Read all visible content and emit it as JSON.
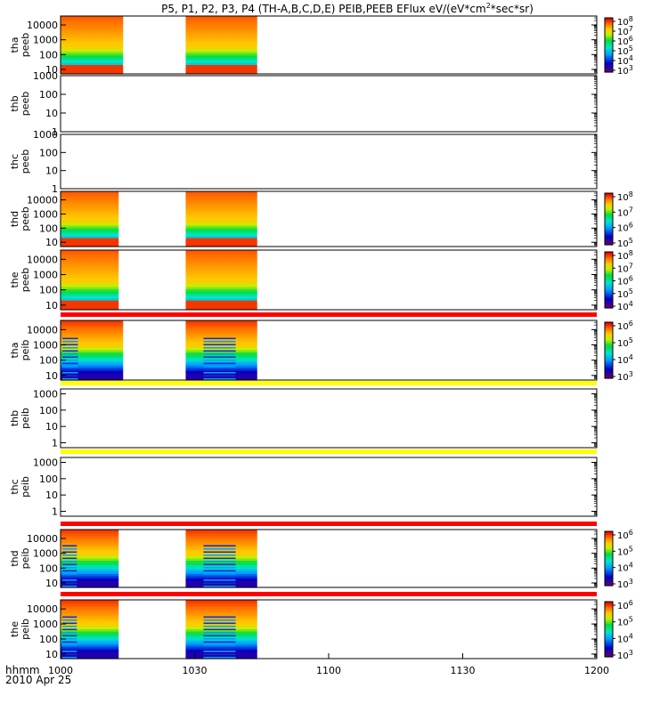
{
  "chart_data": {
    "type": "heatmap",
    "title": "P5, P1, P2, P3, P4 (TH-A,B,C,D,E) PEIB,PEEB EFlux eV/(eV*cm",
    "title_sup": "2",
    "title_suffix": "*sec*sr)",
    "x_axis": {
      "label": "hhmm",
      "date_label": "2010 Apr 25",
      "range": [
        "10:00",
        "12:00"
      ],
      "ticks": [
        "1000",
        "1030",
        "1100",
        "1130",
        "1200"
      ]
    },
    "y_scale": "log",
    "colormap": "rainbow",
    "panels": [
      {
        "probe": "tha",
        "product": "peeb",
        "ylabel": [
          "tha",
          "peeb"
        ],
        "yticks": [
          "10",
          "100",
          "1000",
          "10000"
        ],
        "yrange": [
          5,
          40000
        ],
        "data_intervals": [
          [
            "10:00",
            "10:14"
          ],
          [
            "10:28",
            "10:44"
          ]
        ],
        "colorbar": {
          "ticks": [
            "10",
            "10",
            "10",
            "10",
            "10",
            "10"
          ],
          "exp": [
            "3",
            "4",
            "5",
            "6",
            "7",
            "8"
          ],
          "range": [
            1000.0,
            100000000.0
          ]
        }
      },
      {
        "probe": "thb",
        "product": "peeb",
        "ylabel": [
          "thb",
          "peeb"
        ],
        "yticks": [
          "1",
          "10",
          "100",
          "1000"
        ],
        "yrange": [
          1,
          1000
        ],
        "data_intervals": [],
        "colorbar": null
      },
      {
        "probe": "thc",
        "product": "peeb",
        "ylabel": [
          "thc",
          "peeb"
        ],
        "yticks": [
          "1",
          "10",
          "100",
          "1000"
        ],
        "yrange": [
          1,
          1000
        ],
        "data_intervals": [],
        "colorbar": null
      },
      {
        "probe": "thd",
        "product": "peeb",
        "ylabel": [
          "thd",
          "peeb"
        ],
        "yticks": [
          "10",
          "100",
          "1000",
          "10000"
        ],
        "yrange": [
          5,
          40000
        ],
        "data_intervals": [
          [
            "10:00",
            "10:13"
          ],
          [
            "10:28",
            "10:44"
          ]
        ],
        "colorbar": {
          "ticks": [
            "10",
            "10",
            "10",
            "10"
          ],
          "exp": [
            "5",
            "6",
            "7",
            "8"
          ],
          "range": [
            100000.0,
            100000000.0
          ]
        }
      },
      {
        "probe": "the",
        "product": "peeb",
        "ylabel": [
          "the",
          "peeb"
        ],
        "yticks": [
          "10",
          "100",
          "1000",
          "10000"
        ],
        "yrange": [
          5,
          40000
        ],
        "data_intervals": [
          [
            "10:00",
            "10:13"
          ],
          [
            "10:28",
            "10:44"
          ]
        ],
        "colorbar": {
          "ticks": [
            "10",
            "10",
            "10",
            "10",
            "10"
          ],
          "exp": [
            "4",
            "5",
            "6",
            "7",
            "8"
          ],
          "range": [
            10000.0,
            100000000.0
          ]
        }
      },
      {
        "probe": "tha",
        "product": "peib",
        "ylabel": [
          "tha",
          "peib"
        ],
        "yticks": [
          "10",
          "100",
          "1000",
          "10000"
        ],
        "yrange": [
          5,
          40000
        ],
        "data_intervals": [
          [
            "10:00",
            "10:14"
          ],
          [
            "10:28",
            "10:44"
          ]
        ],
        "flag_color": "#ff0000",
        "colorbar": {
          "ticks": [
            "10",
            "10",
            "10",
            "10"
          ],
          "exp": [
            "3",
            "4",
            "5",
            "6"
          ],
          "range": [
            1000.0,
            1000000.0
          ]
        }
      },
      {
        "probe": "thb",
        "product": "peib",
        "ylabel": [
          "thb",
          "peib"
        ],
        "yticks": [
          "1",
          "10",
          "100",
          "1000"
        ],
        "yrange": [
          0.5,
          2000
        ],
        "data_intervals": [],
        "flag_color": "#ffff00",
        "colorbar": null
      },
      {
        "probe": "thc",
        "product": "peib",
        "ylabel": [
          "thc",
          "peib"
        ],
        "yticks": [
          "1",
          "10",
          "100",
          "1000"
        ],
        "yrange": [
          0.5,
          2000
        ],
        "data_intervals": [],
        "flag_color": "#ffff00",
        "colorbar": null
      },
      {
        "probe": "thd",
        "product": "peib",
        "ylabel": [
          "thd",
          "peib"
        ],
        "yticks": [
          "10",
          "100",
          "1000",
          "10000"
        ],
        "yrange": [
          5,
          40000
        ],
        "data_intervals": [
          [
            "10:00",
            "10:13"
          ],
          [
            "10:28",
            "10:44"
          ]
        ],
        "flag_color": "#ff0000",
        "colorbar": {
          "ticks": [
            "10",
            "10",
            "10",
            "10"
          ],
          "exp": [
            "3",
            "4",
            "5",
            "6"
          ],
          "range": [
            1000.0,
            1000000.0
          ]
        }
      },
      {
        "probe": "the",
        "product": "peib",
        "ylabel": [
          "the",
          "peib"
        ],
        "yticks": [
          "10",
          "100",
          "1000",
          "10000"
        ],
        "yrange": [
          5,
          40000
        ],
        "data_intervals": [
          [
            "10:00",
            "10:13"
          ],
          [
            "10:28",
            "10:44"
          ]
        ],
        "flag_color": "#ff0000",
        "colorbar": {
          "ticks": [
            "10",
            "10",
            "10",
            "10"
          ],
          "exp": [
            "3",
            "4",
            "5",
            "6"
          ],
          "range": [
            1000.0,
            1000000.0
          ]
        }
      }
    ]
  }
}
